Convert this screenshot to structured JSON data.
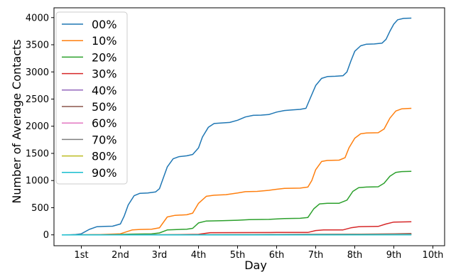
{
  "chart_data": {
    "type": "line",
    "xlabel": "Day",
    "ylabel": "Number of Average Contacts",
    "x_ticks": [
      {
        "value": 1,
        "label": "1st"
      },
      {
        "value": 2,
        "label": "2nd"
      },
      {
        "value": 3,
        "label": "3rd"
      },
      {
        "value": 4,
        "label": "4th"
      },
      {
        "value": 5,
        "label": "5th"
      },
      {
        "value": 6,
        "label": "6th"
      },
      {
        "value": 7,
        "label": "7th"
      },
      {
        "value": 8,
        "label": "8th"
      },
      {
        "value": 9,
        "label": "9th"
      },
      {
        "value": 10,
        "label": "10th"
      }
    ],
    "y_ticks": [
      0,
      500,
      1000,
      1500,
      2000,
      2500,
      3000,
      3500,
      4000
    ],
    "xlim": [
      0.3,
      10.3
    ],
    "ylim": [
      -200,
      4180
    ],
    "legend_position": "top-left",
    "grid": false,
    "series": [
      {
        "name": "00%",
        "color": "#1f77b4",
        "points": [
          [
            0.5,
            0
          ],
          [
            0.7,
            0
          ],
          [
            0.85,
            5
          ],
          [
            1.0,
            20
          ],
          [
            1.2,
            100
          ],
          [
            1.4,
            150
          ],
          [
            1.6,
            155
          ],
          [
            1.8,
            160
          ],
          [
            2.0,
            200
          ],
          [
            2.1,
            350
          ],
          [
            2.2,
            550
          ],
          [
            2.35,
            720
          ],
          [
            2.5,
            765
          ],
          [
            2.7,
            770
          ],
          [
            2.9,
            790
          ],
          [
            3.0,
            850
          ],
          [
            3.1,
            1050
          ],
          [
            3.2,
            1250
          ],
          [
            3.35,
            1400
          ],
          [
            3.5,
            1440
          ],
          [
            3.7,
            1455
          ],
          [
            3.85,
            1480
          ],
          [
            4.0,
            1600
          ],
          [
            4.1,
            1800
          ],
          [
            4.25,
            1980
          ],
          [
            4.4,
            2050
          ],
          [
            4.6,
            2060
          ],
          [
            4.8,
            2070
          ],
          [
            5.0,
            2110
          ],
          [
            5.2,
            2170
          ],
          [
            5.4,
            2200
          ],
          [
            5.6,
            2205
          ],
          [
            5.8,
            2215
          ],
          [
            6.0,
            2260
          ],
          [
            6.2,
            2290
          ],
          [
            6.4,
            2300
          ],
          [
            6.6,
            2310
          ],
          [
            6.75,
            2330
          ],
          [
            6.85,
            2500
          ],
          [
            7.0,
            2750
          ],
          [
            7.15,
            2880
          ],
          [
            7.3,
            2915
          ],
          [
            7.5,
            2920
          ],
          [
            7.7,
            2930
          ],
          [
            7.8,
            3000
          ],
          [
            7.9,
            3200
          ],
          [
            8.0,
            3380
          ],
          [
            8.15,
            3480
          ],
          [
            8.3,
            3510
          ],
          [
            8.5,
            3515
          ],
          [
            8.7,
            3530
          ],
          [
            8.8,
            3600
          ],
          [
            8.9,
            3750
          ],
          [
            9.0,
            3880
          ],
          [
            9.1,
            3960
          ],
          [
            9.25,
            3985
          ],
          [
            9.45,
            3990
          ]
        ]
      },
      {
        "name": "10%",
        "color": "#ff7f0e",
        "points": [
          [
            0.5,
            0
          ],
          [
            1.0,
            0
          ],
          [
            1.5,
            5
          ],
          [
            2.0,
            20
          ],
          [
            2.3,
            90
          ],
          [
            2.5,
            100
          ],
          [
            2.8,
            105
          ],
          [
            3.0,
            130
          ],
          [
            3.2,
            330
          ],
          [
            3.4,
            360
          ],
          [
            3.7,
            370
          ],
          [
            3.85,
            400
          ],
          [
            4.0,
            580
          ],
          [
            4.2,
            710
          ],
          [
            4.4,
            730
          ],
          [
            4.7,
            740
          ],
          [
            5.0,
            770
          ],
          [
            5.2,
            795
          ],
          [
            5.5,
            800
          ],
          [
            5.8,
            820
          ],
          [
            6.0,
            840
          ],
          [
            6.2,
            855
          ],
          [
            6.6,
            860
          ],
          [
            6.8,
            880
          ],
          [
            6.9,
            1000
          ],
          [
            7.0,
            1200
          ],
          [
            7.15,
            1350
          ],
          [
            7.3,
            1370
          ],
          [
            7.6,
            1375
          ],
          [
            7.75,
            1420
          ],
          [
            7.85,
            1600
          ],
          [
            8.0,
            1780
          ],
          [
            8.15,
            1860
          ],
          [
            8.3,
            1875
          ],
          [
            8.6,
            1880
          ],
          [
            8.75,
            1950
          ],
          [
            8.9,
            2150
          ],
          [
            9.05,
            2280
          ],
          [
            9.2,
            2320
          ],
          [
            9.45,
            2330
          ]
        ]
      },
      {
        "name": "20%",
        "color": "#2ca02c",
        "points": [
          [
            0.5,
            0
          ],
          [
            1.5,
            0
          ],
          [
            2.3,
            15
          ],
          [
            2.8,
            20
          ],
          [
            3.0,
            35
          ],
          [
            3.2,
            90
          ],
          [
            3.5,
            100
          ],
          [
            3.7,
            105
          ],
          [
            3.85,
            120
          ],
          [
            4.0,
            220
          ],
          [
            4.2,
            255
          ],
          [
            4.6,
            260
          ],
          [
            5.0,
            270
          ],
          [
            5.3,
            280
          ],
          [
            5.8,
            285
          ],
          [
            6.2,
            300
          ],
          [
            6.6,
            305
          ],
          [
            6.8,
            320
          ],
          [
            6.95,
            480
          ],
          [
            7.1,
            570
          ],
          [
            7.3,
            580
          ],
          [
            7.6,
            582
          ],
          [
            7.8,
            640
          ],
          [
            7.95,
            800
          ],
          [
            8.1,
            870
          ],
          [
            8.3,
            880
          ],
          [
            8.6,
            885
          ],
          [
            8.75,
            950
          ],
          [
            8.9,
            1080
          ],
          [
            9.05,
            1150
          ],
          [
            9.2,
            1165
          ],
          [
            9.45,
            1170
          ]
        ]
      },
      {
        "name": "30%",
        "color": "#d62728",
        "points": [
          [
            0.5,
            0
          ],
          [
            3.0,
            0
          ],
          [
            4.0,
            10
          ],
          [
            4.3,
            40
          ],
          [
            5.0,
            42
          ],
          [
            6.0,
            44
          ],
          [
            6.8,
            45
          ],
          [
            7.0,
            80
          ],
          [
            7.2,
            90
          ],
          [
            7.7,
            92
          ],
          [
            7.9,
            130
          ],
          [
            8.1,
            150
          ],
          [
            8.6,
            155
          ],
          [
            8.8,
            200
          ],
          [
            9.0,
            235
          ],
          [
            9.45,
            240
          ]
        ]
      },
      {
        "name": "40%",
        "color": "#9467bd",
        "points": [
          [
            0.5,
            0
          ],
          [
            4.0,
            0
          ],
          [
            6.0,
            5
          ],
          [
            8.0,
            10
          ],
          [
            9.0,
            15
          ],
          [
            9.45,
            18
          ]
        ]
      },
      {
        "name": "50%",
        "color": "#8c564b",
        "points": [
          [
            0.5,
            0
          ],
          [
            4.0,
            2
          ],
          [
            6.0,
            8
          ],
          [
            8.0,
            12
          ],
          [
            9.0,
            20
          ],
          [
            9.45,
            25
          ]
        ]
      },
      {
        "name": "60%",
        "color": "#e377c2",
        "points": [
          [
            0.5,
            0
          ],
          [
            5.0,
            2
          ],
          [
            8.0,
            5
          ],
          [
            9.45,
            10
          ]
        ]
      },
      {
        "name": "70%",
        "color": "#7f7f7f",
        "points": [
          [
            0.5,
            0
          ],
          [
            5.0,
            1
          ],
          [
            8.0,
            4
          ],
          [
            9.45,
            8
          ]
        ]
      },
      {
        "name": "80%",
        "color": "#bcbd22",
        "points": [
          [
            0.5,
            0
          ],
          [
            6.0,
            1
          ],
          [
            9.45,
            4
          ]
        ]
      },
      {
        "name": "90%",
        "color": "#17becf",
        "points": [
          [
            0.5,
            0
          ],
          [
            6.0,
            0
          ],
          [
            9.45,
            2
          ]
        ]
      }
    ]
  }
}
